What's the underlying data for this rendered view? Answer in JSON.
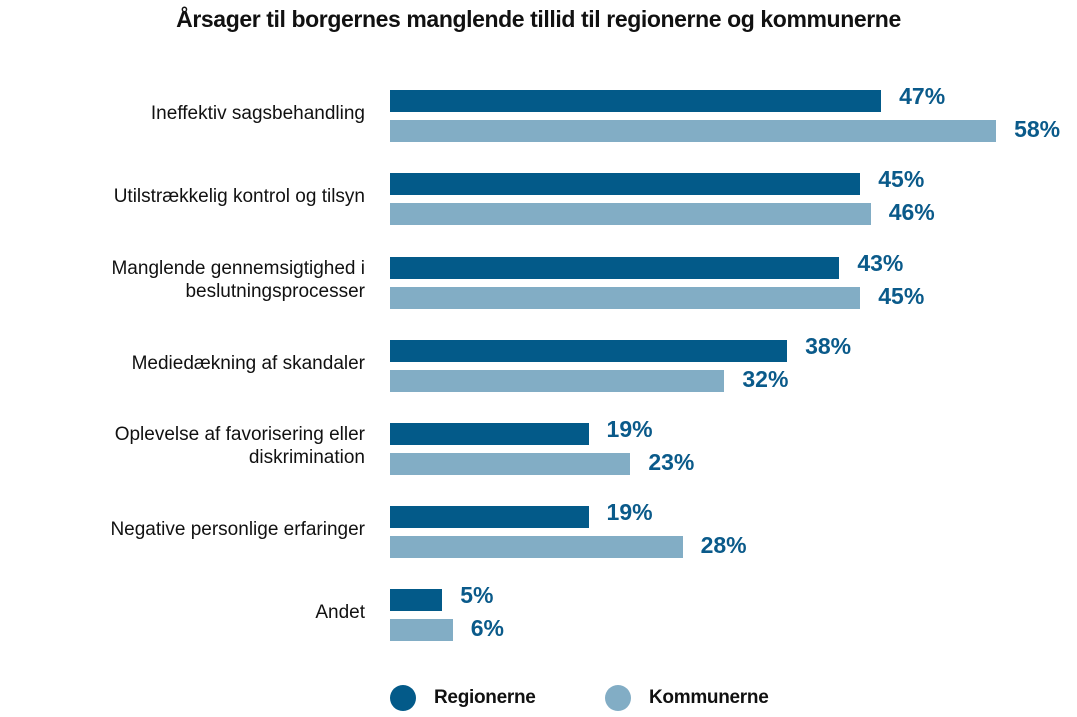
{
  "chart_data": {
    "type": "bar",
    "orientation": "horizontal",
    "title": "Årsager til borgernes manglende tillid til regionerne og kommunerne",
    "xlabel": "",
    "ylabel": "",
    "grid": false,
    "legend_position": "bottom",
    "xlim": [
      0,
      60
    ],
    "categories": [
      "Ineffektiv sagsbehandling",
      "Utilstrækkelig kontrol og tilsyn",
      "Manglende gennemsigtighed i beslutningsprocesser",
      "Mediedækning af skandaler",
      "Oplevelse af favorisering eller diskrimination",
      "Negative personlige erfaringer",
      "Andet"
    ],
    "series": [
      {
        "name": "Regionerne",
        "color": "#035a89",
        "values": [
          47,
          45,
          43,
          38,
          19,
          19,
          5
        ]
      },
      {
        "name": "Kommunerne",
        "color": "#82adc5",
        "values": [
          58,
          46,
          45,
          32,
          23,
          28,
          6
        ]
      }
    ]
  },
  "title": "Årsager til borgernes manglende tillid til regionerne og kommunerne",
  "groups": [
    {
      "label_lines": [
        "Ineffektiv sagsbehandling"
      ],
      "r": "47%",
      "k": "58%"
    },
    {
      "label_lines": [
        "Utilstrækkelig kontrol og tilsyn"
      ],
      "r": "45%",
      "k": "46%"
    },
    {
      "label_lines": [
        "Manglende gennemsigtighed i",
        "beslutningsprocesser"
      ],
      "r": "43%",
      "k": "45%"
    },
    {
      "label_lines": [
        "Mediedækning af skandaler"
      ],
      "r": "38%",
      "k": "32%"
    },
    {
      "label_lines": [
        "Oplevelse af favorisering eller",
        "diskrimination"
      ],
      "r": "19%",
      "k": "23%"
    },
    {
      "label_lines": [
        "Negative personlige erfaringer"
      ],
      "r": "19%",
      "k": "28%"
    },
    {
      "label_lines": [
        "Andet"
      ],
      "r": "5%",
      "k": "6%"
    }
  ],
  "legend": {
    "regionerne": "Regionerne",
    "kommunerne": "Kommunerne"
  },
  "colors": {
    "regionerne": "#035a89",
    "kommunerne": "#82adc5",
    "value_label": "#0a5a8a"
  }
}
